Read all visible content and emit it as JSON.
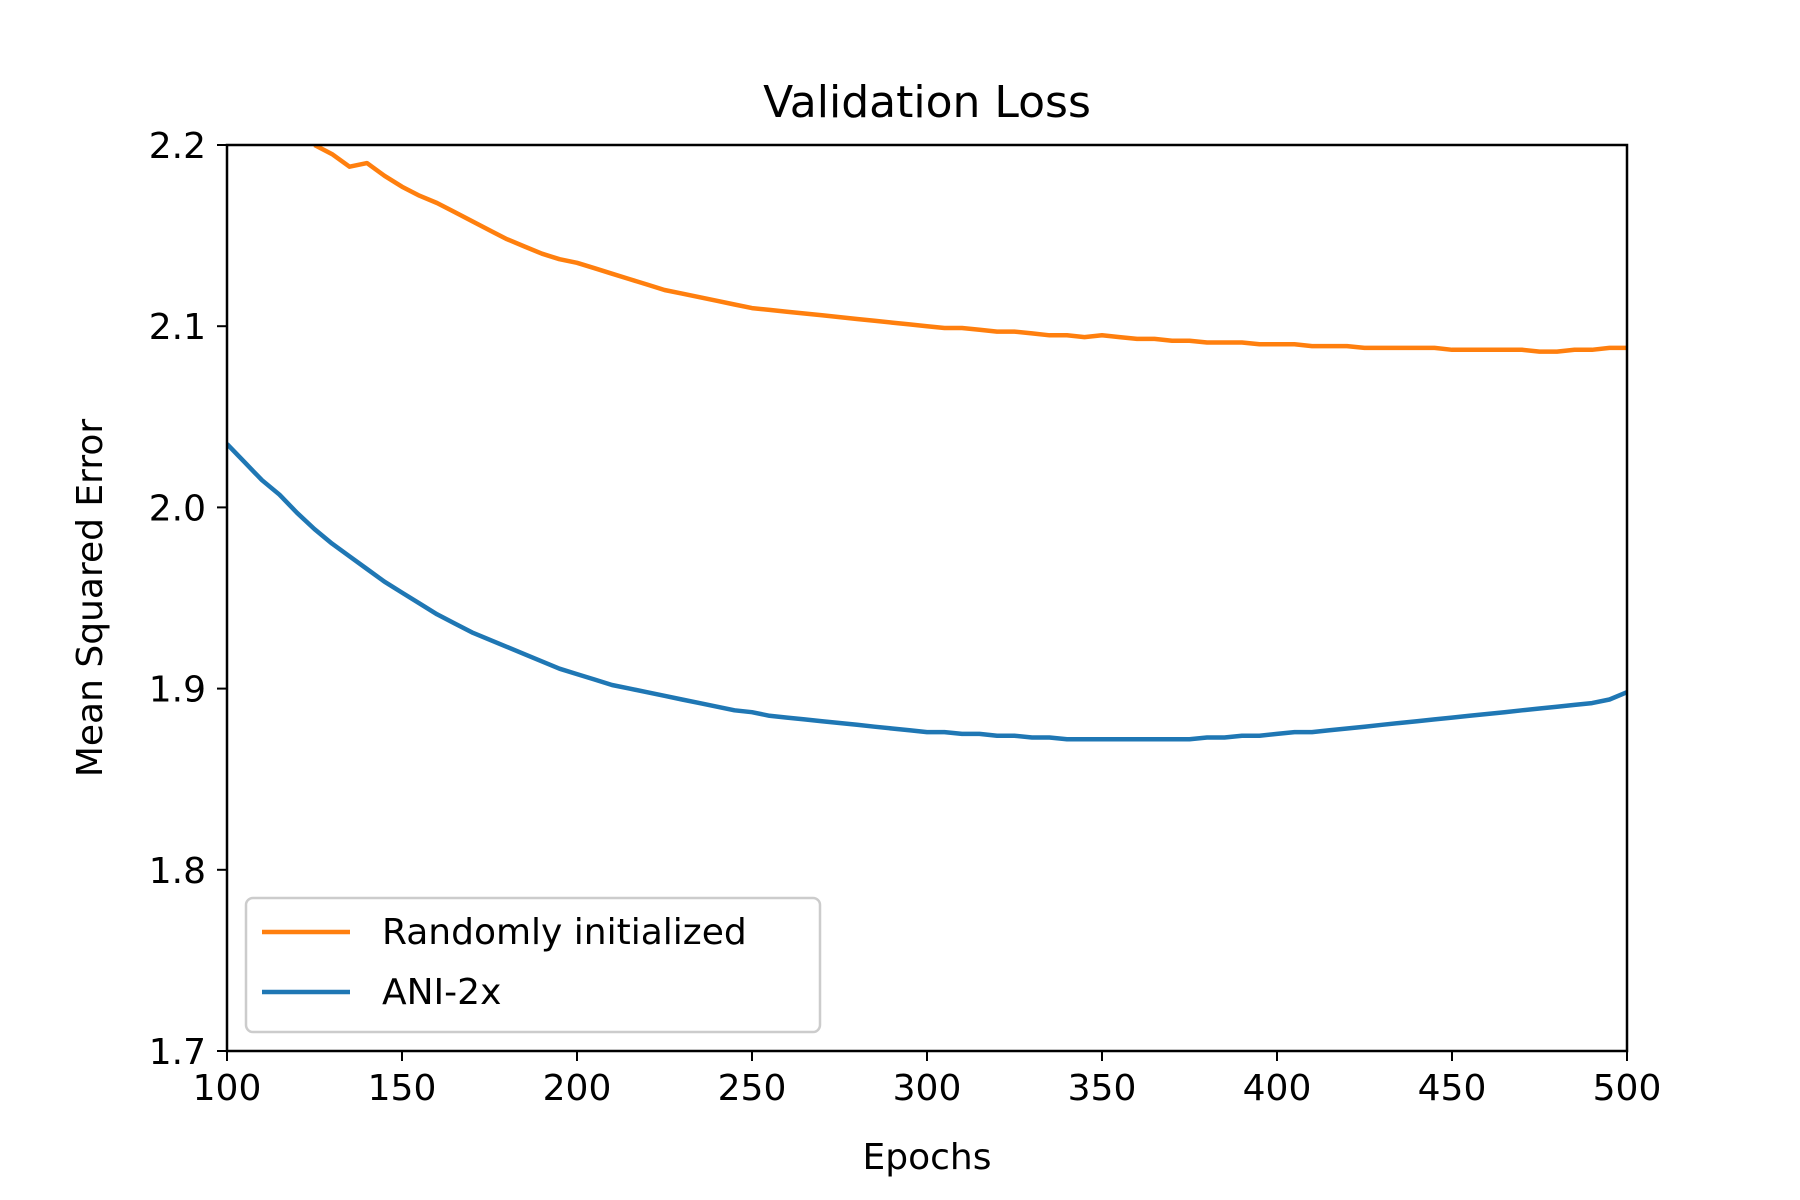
{
  "chart_data": {
    "type": "line",
    "title": "Validation Loss",
    "xlabel": "Epochs",
    "ylabel": "Mean Squared Error",
    "xlim": [
      100,
      500
    ],
    "ylim": [
      1.7,
      2.2
    ],
    "xticks": [
      100,
      150,
      200,
      250,
      300,
      350,
      400,
      450,
      500
    ],
    "xtick_labels": [
      "100",
      "150",
      "200",
      "250",
      "300",
      "350",
      "400",
      "450",
      "500"
    ],
    "yticks": [
      1.7,
      1.8,
      1.9,
      2.0,
      2.1,
      2.2
    ],
    "ytick_labels": [
      "1.7",
      "1.8",
      "1.9",
      "2.0",
      "2.1",
      "2.2"
    ],
    "grid": false,
    "legend_position": "lower-left",
    "series": [
      {
        "name": "Randomly initialized",
        "color": "#ff7f0e",
        "x": [
          125,
          130,
          135,
          140,
          145,
          150,
          155,
          160,
          165,
          170,
          175,
          180,
          185,
          190,
          195,
          200,
          205,
          210,
          215,
          220,
          225,
          230,
          235,
          240,
          245,
          250,
          255,
          260,
          265,
          270,
          275,
          280,
          285,
          290,
          295,
          300,
          305,
          310,
          315,
          320,
          325,
          330,
          335,
          340,
          345,
          350,
          355,
          360,
          365,
          370,
          375,
          380,
          385,
          390,
          395,
          400,
          405,
          410,
          415,
          420,
          425,
          430,
          435,
          440,
          445,
          450,
          455,
          460,
          465,
          470,
          475,
          480,
          485,
          490,
          495,
          500
        ],
        "y": [
          2.2,
          2.195,
          2.188,
          2.19,
          2.183,
          2.177,
          2.172,
          2.168,
          2.163,
          2.158,
          2.153,
          2.148,
          2.144,
          2.14,
          2.137,
          2.135,
          2.132,
          2.129,
          2.126,
          2.123,
          2.12,
          2.118,
          2.116,
          2.114,
          2.112,
          2.11,
          2.109,
          2.108,
          2.107,
          2.106,
          2.105,
          2.104,
          2.103,
          2.102,
          2.101,
          2.1,
          2.099,
          2.099,
          2.098,
          2.097,
          2.097,
          2.096,
          2.095,
          2.095,
          2.094,
          2.095,
          2.094,
          2.093,
          2.093,
          2.092,
          2.092,
          2.091,
          2.091,
          2.091,
          2.09,
          2.09,
          2.09,
          2.089,
          2.089,
          2.089,
          2.088,
          2.088,
          2.088,
          2.088,
          2.088,
          2.087,
          2.087,
          2.087,
          2.087,
          2.087,
          2.086,
          2.086,
          2.087,
          2.087,
          2.088,
          2.088
        ]
      },
      {
        "name": "ANI-2x",
        "color": "#1f77b4",
        "x": [
          100,
          105,
          110,
          115,
          120,
          125,
          130,
          135,
          140,
          145,
          150,
          155,
          160,
          165,
          170,
          175,
          180,
          185,
          190,
          195,
          200,
          205,
          210,
          215,
          220,
          225,
          230,
          235,
          240,
          245,
          250,
          255,
          260,
          265,
          270,
          275,
          280,
          285,
          290,
          295,
          300,
          305,
          310,
          315,
          320,
          325,
          330,
          335,
          340,
          345,
          350,
          355,
          360,
          365,
          370,
          375,
          380,
          385,
          390,
          395,
          400,
          405,
          410,
          415,
          420,
          425,
          430,
          435,
          440,
          445,
          450,
          455,
          460,
          465,
          470,
          475,
          480,
          485,
          490,
          495,
          500
        ],
        "y": [
          2.035,
          2.025,
          2.015,
          2.007,
          1.997,
          1.988,
          1.98,
          1.973,
          1.966,
          1.959,
          1.953,
          1.947,
          1.941,
          1.936,
          1.931,
          1.927,
          1.923,
          1.919,
          1.915,
          1.911,
          1.908,
          1.905,
          1.902,
          1.9,
          1.898,
          1.896,
          1.894,
          1.892,
          1.89,
          1.888,
          1.887,
          1.885,
          1.884,
          1.883,
          1.882,
          1.881,
          1.88,
          1.879,
          1.878,
          1.877,
          1.876,
          1.876,
          1.875,
          1.875,
          1.874,
          1.874,
          1.873,
          1.873,
          1.872,
          1.872,
          1.872,
          1.872,
          1.872,
          1.872,
          1.872,
          1.872,
          1.873,
          1.873,
          1.874,
          1.874,
          1.875,
          1.876,
          1.876,
          1.877,
          1.878,
          1.879,
          1.88,
          1.881,
          1.882,
          1.883,
          1.884,
          1.885,
          1.886,
          1.887,
          1.888,
          1.889,
          1.89,
          1.891,
          1.892,
          1.894,
          1.898
        ]
      }
    ]
  }
}
